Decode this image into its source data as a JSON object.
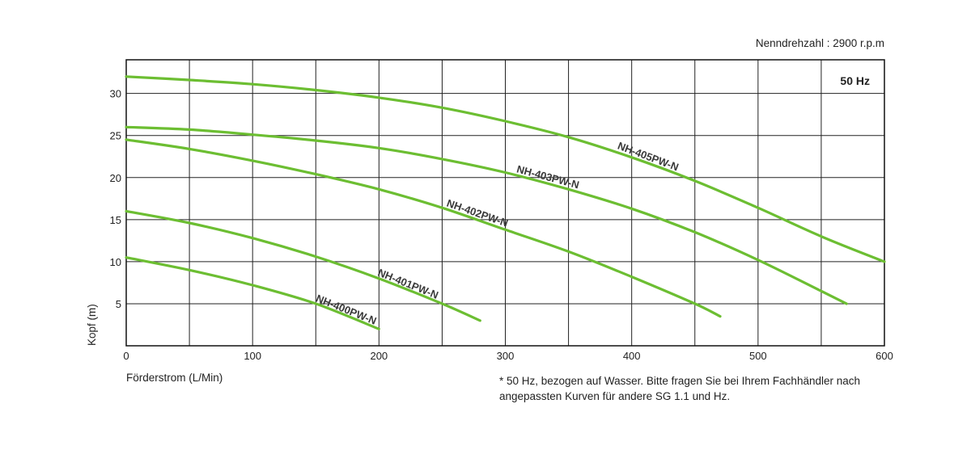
{
  "chart_data": {
    "type": "line",
    "title": "",
    "speed_note": "Nenndrehzahl : 2900 r.p.m",
    "frequency_badge": "50 Hz",
    "xlabel": "Förderstrom (L/Min)",
    "ylabel": "Kopf (m)",
    "xlim": [
      0,
      600
    ],
    "ylim": [
      0,
      34
    ],
    "xticks": [
      0,
      100,
      200,
      300,
      400,
      500,
      600
    ],
    "yticks": [
      5,
      10,
      15,
      20,
      25,
      30
    ],
    "grid": true,
    "line_color": "#6cbe32",
    "series": [
      {
        "name": "NH-400PW-N",
        "x": [
          0,
          50,
          100,
          150,
          200
        ],
        "y": [
          10.5,
          9.0,
          7.2,
          5.0,
          2.0
        ]
      },
      {
        "name": "NH-401PW-N",
        "x": [
          0,
          50,
          100,
          150,
          200,
          250,
          280
        ],
        "y": [
          16.0,
          14.6,
          12.8,
          10.6,
          8.0,
          5.0,
          3.0
        ]
      },
      {
        "name": "NH-402PW-N",
        "x": [
          0,
          50,
          100,
          150,
          200,
          250,
          300,
          350,
          400,
          450,
          470
        ],
        "y": [
          24.5,
          23.4,
          22.0,
          20.4,
          18.6,
          16.4,
          13.8,
          11.2,
          8.2,
          5.0,
          3.5
        ]
      },
      {
        "name": "NH-403PW-N",
        "x": [
          0,
          50,
          100,
          150,
          200,
          250,
          300,
          350,
          400,
          450,
          500,
          550,
          570
        ],
        "y": [
          26.0,
          25.7,
          25.1,
          24.4,
          23.5,
          22.2,
          20.6,
          18.6,
          16.3,
          13.5,
          10.2,
          6.5,
          5.0
        ]
      },
      {
        "name": "NH-405PW-N",
        "x": [
          0,
          50,
          100,
          150,
          200,
          250,
          300,
          350,
          400,
          450,
          500,
          550,
          600
        ],
        "y": [
          32.0,
          31.6,
          31.1,
          30.4,
          29.5,
          28.3,
          26.7,
          24.8,
          22.4,
          19.6,
          16.4,
          13.0,
          10.0
        ]
      }
    ]
  },
  "footnote": {
    "line1": "* 50 Hz, bezogen auf Wasser. Bitte fragen Sie bei Ihrem Fachhändler nach",
    "line2": "angepassten Kurven für andere SG 1.1 und Hz."
  }
}
